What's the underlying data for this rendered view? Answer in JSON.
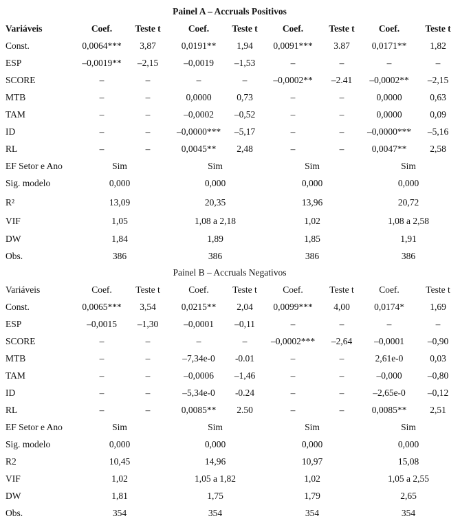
{
  "panels": [
    {
      "title": "Painel A – Accruals Positivos",
      "header": [
        "Variáveis",
        "Coef.",
        "Teste t",
        "Coef.",
        "Teste t",
        "Coef.",
        "Teste t",
        "Coef.",
        "Teste t"
      ],
      "rows": [
        [
          "Const.",
          "0,0064***",
          "3,87",
          "0,0191**",
          "1,94",
          "0,0091***",
          "3.87",
          "0,0171**",
          "1,82"
        ],
        [
          "ESP",
          "–0,0019**",
          "–2,15",
          "–0,0019",
          "–1,53",
          "–",
          "–",
          "–",
          "–"
        ],
        [
          "SCORE",
          "–",
          "–",
          "–",
          "–",
          "–0,0002**",
          "–2.41",
          "–0,0002**",
          "–2,15"
        ],
        [
          "MTB",
          "–",
          "–",
          "0,0000",
          "0,73",
          "–",
          "–",
          "0,0000",
          "0,63"
        ],
        [
          "TAM",
          "–",
          "–",
          "–0,0002",
          "–0,52",
          "–",
          "–",
          "0,0000",
          "0,09"
        ],
        [
          "ID",
          "–",
          "–",
          "–0,0000***",
          "–5,17",
          "–",
          "–",
          "–0,0000***",
          "–5,16"
        ],
        [
          "RL",
          "–",
          "–",
          "0,0045**",
          "2,48",
          "–",
          "–",
          "0,0047**",
          "2,58"
        ],
        [
          "EF Setor e Ano",
          "Sim",
          "Sim",
          "Sim",
          "Sim"
        ],
        [
          "Sig. modelo",
          "0,000",
          "0,000",
          "0,000",
          "0,000"
        ],
        [
          "R²",
          "13,09",
          "20,35",
          "13,96",
          "20,72"
        ],
        [
          "VIF",
          "1,05",
          "1,08 a 2,18",
          "1,02",
          "1,08 a 2,58"
        ],
        [
          "DW",
          "1,84",
          "1,89",
          "1,85",
          "1,91"
        ],
        [
          "Obs.",
          "386",
          "386",
          "386",
          "386"
        ]
      ]
    },
    {
      "title": "Painel B – Accruals Negativos",
      "header": [
        "Variáveis",
        "Coef.",
        "Teste t",
        "Coef.",
        "Teste t",
        "Coef.",
        "Teste t",
        "Coef.",
        "Teste t"
      ],
      "rows": [
        [
          "Const.",
          "0,0065***",
          "3,54",
          "0,0215**",
          "2,04",
          "0,0099***",
          "4,00",
          "0,0174*",
          "1,69"
        ],
        [
          "ESP",
          "–0,0015",
          "–1,30",
          "–0,0001",
          "–0,11",
          "–",
          "–",
          "–",
          "–"
        ],
        [
          "SCORE",
          "–",
          "–",
          "–",
          "–",
          "–0,0002***",
          "–2,64",
          "–0,0001",
          "–0,90"
        ],
        [
          "MTB",
          "–",
          "–",
          "–7,34e-0",
          "-0.01",
          "–",
          "–",
          "2,61e-0",
          "0,03"
        ],
        [
          "TAM",
          "–",
          "–",
          "–0,0006",
          "–1,46",
          "–",
          "–",
          "–0,000",
          "–0,80"
        ],
        [
          "ID",
          "–",
          "–",
          "–5,34e-0",
          "-0.24",
          "–",
          "–",
          "–2,65e-0",
          "–0,12"
        ],
        [
          "RL",
          "–",
          "–",
          "0,0085**",
          "2.50",
          "–",
          "–",
          "0,0085**",
          "2,51"
        ],
        [
          "EF Setor e Ano",
          "Sim",
          "Sim",
          "Sim",
          "Sim"
        ],
        [
          "Sig. modelo",
          "0,000",
          "0,000",
          "0,000",
          "0,000"
        ],
        [
          "R2",
          "10,45",
          "14,96",
          "10,97",
          "15,08"
        ],
        [
          "VIF",
          "1,02",
          "1,05 a 1,82",
          "1,02",
          "1,05 a 2,55"
        ],
        [
          "DW",
          "1,81",
          "1,75",
          "1,79",
          "2,65"
        ],
        [
          "Obs.",
          "354",
          "354",
          "354",
          "354"
        ]
      ]
    }
  ]
}
